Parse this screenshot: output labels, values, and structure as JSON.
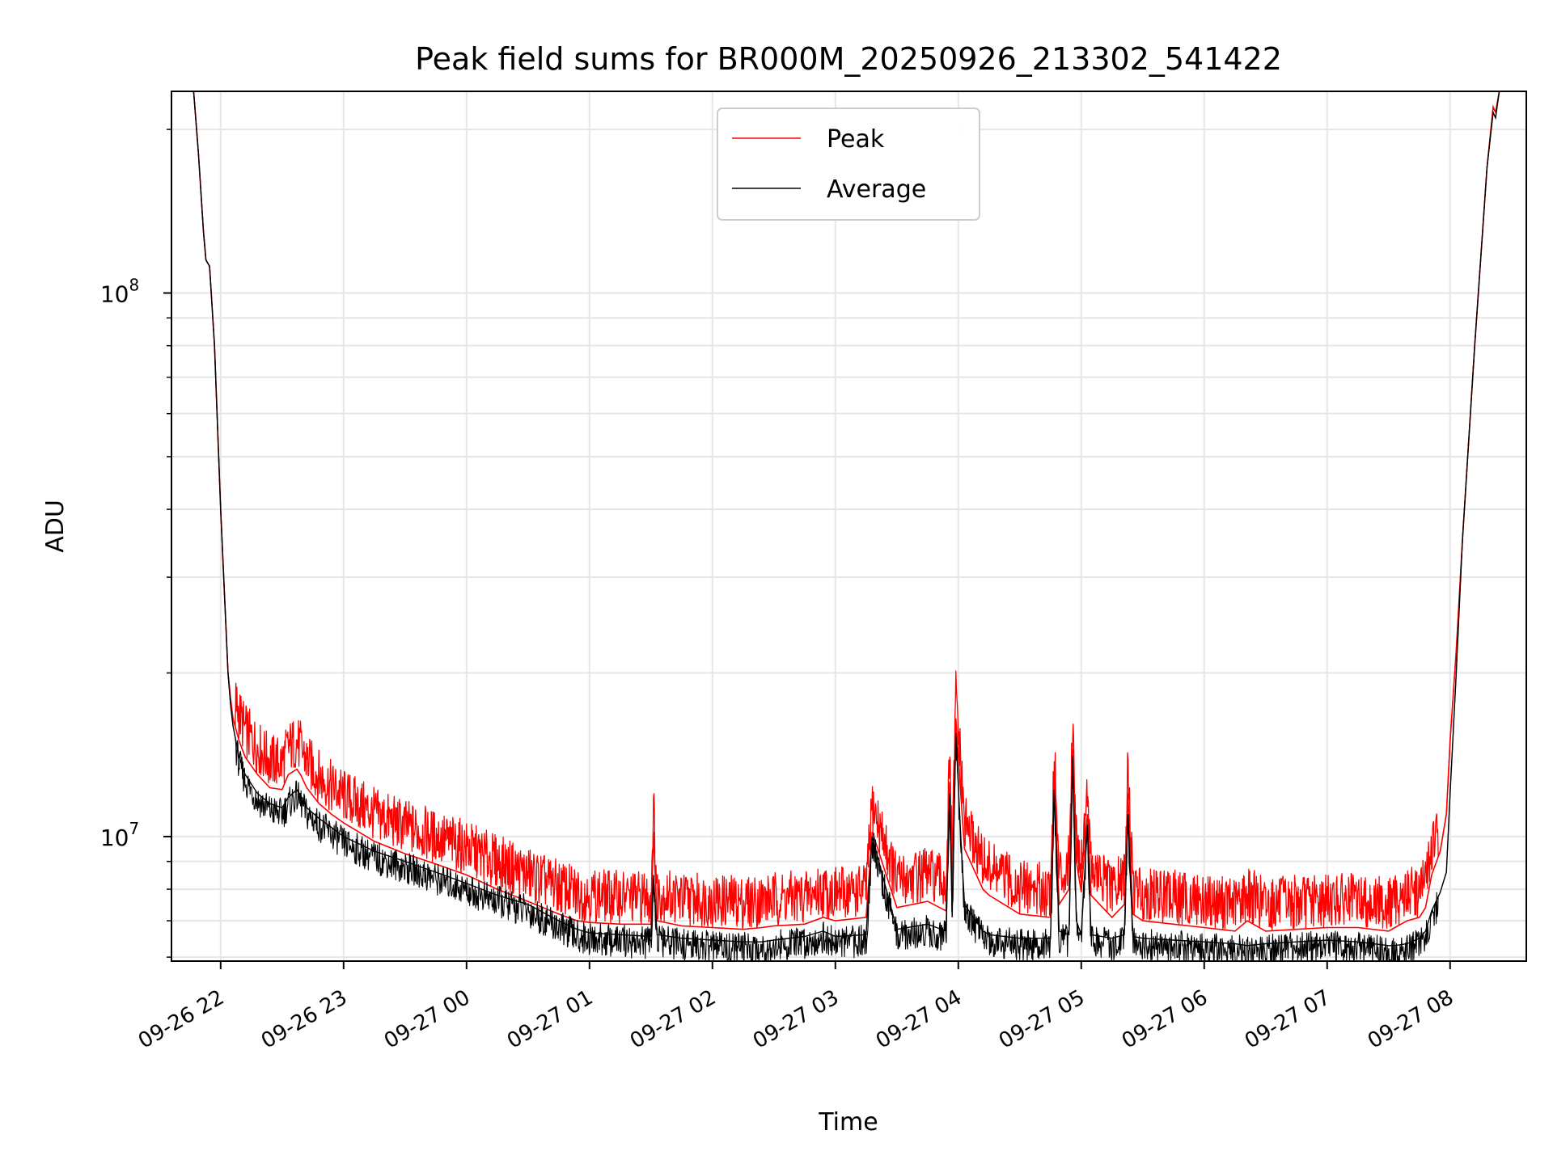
{
  "chart_data": {
    "type": "line",
    "title": "Peak field sums for BR000M_20250926_213302_541422",
    "xlabel": "Time",
    "ylabel": "ADU",
    "yscale": "log",
    "xlim": [
      -0.4,
      10.62
    ],
    "ylim": [
      5900000,
      235000000
    ],
    "grid": true,
    "legend_position": "top-center",
    "x_ticks": [
      {
        "value": 0,
        "label": "09-26 22"
      },
      {
        "value": 1,
        "label": "09-26 23"
      },
      {
        "value": 2,
        "label": "09-27 00"
      },
      {
        "value": 3,
        "label": "09-27 01"
      },
      {
        "value": 4,
        "label": "09-27 02"
      },
      {
        "value": 5,
        "label": "09-27 03"
      },
      {
        "value": 6,
        "label": "09-27 04"
      },
      {
        "value": 7,
        "label": "09-27 05"
      },
      {
        "value": 8,
        "label": "09-27 06"
      },
      {
        "value": 9,
        "label": "09-27 07"
      },
      {
        "value": 10,
        "label": "09-27 08"
      }
    ],
    "y_ticks": [
      {
        "value": 10000000,
        "base": "10",
        "exp": "7"
      },
      {
        "value": 100000000,
        "base": "10",
        "exp": "8"
      }
    ],
    "series": [
      {
        "name": "Peak",
        "color": "#ff0000",
        "x": [
          -0.27,
          -0.22,
          -0.18,
          -0.14,
          -0.12,
          -0.09,
          -0.05,
          0,
          0.06,
          0.08,
          0.1,
          0.15,
          0.2,
          0.3,
          0.4,
          0.5,
          0.55,
          0.62,
          0.65,
          0.7,
          0.8,
          0.9,
          1,
          1.25,
          1.5,
          1.75,
          2,
          2.25,
          2.5,
          2.75,
          2.9,
          3,
          3.25,
          3.5,
          3.52,
          3.55,
          3.75,
          4,
          4.25,
          4.4,
          4.5,
          4.75,
          4.9,
          5,
          5.25,
          5.3,
          5.5,
          5.75,
          5.9,
          5.93,
          5.95,
          5.98,
          6.02,
          6.05,
          6.2,
          6.25,
          6.5,
          6.75,
          6.78,
          6.82,
          6.9,
          6.93,
          6.96,
          7,
          7.05,
          7.08,
          7.25,
          7.35,
          7.38,
          7.42,
          7.5,
          7.75,
          8,
          8.25,
          8.35,
          8.5,
          8.75,
          9,
          9.25,
          9.5,
          9.55,
          9.65,
          9.75,
          9.8,
          9.85,
          9.92,
          9.97,
          10,
          10.05,
          10.1,
          10.2,
          10.3,
          10.35,
          10.37,
          10.4,
          10.45,
          10.5
        ],
        "y": [
          235000000,
          235000000,
          180000000,
          130000000,
          115000000,
          112000000,
          80000000,
          40000000,
          20000000,
          18000000,
          16500000,
          15000000,
          14000000,
          13000000,
          12300000,
          12200000,
          13000000,
          13300000,
          13000000,
          12300000,
          11500000,
          11000000,
          10600000,
          9800000,
          9300000,
          8900000,
          8500000,
          8000000,
          7600000,
          7200000,
          7000000,
          6950000,
          6900000,
          6900000,
          10200000,
          7000000,
          6850000,
          6800000,
          6750000,
          6800000,
          6850000,
          6900000,
          7100000,
          7000000,
          7100000,
          10200000,
          7400000,
          7600000,
          7300000,
          12600000,
          8000000,
          16500000,
          12000000,
          9500000,
          8000000,
          7800000,
          7200000,
          7100000,
          12700000,
          7500000,
          8000000,
          14500000,
          9000000,
          7900000,
          11000000,
          7800000,
          7100000,
          7500000,
          12000000,
          7200000,
          7000000,
          6900000,
          6800000,
          6700000,
          7000000,
          6700000,
          6750000,
          6800000,
          6800000,
          6700000,
          6800000,
          7000000,
          7100000,
          7400000,
          8500000,
          9400000,
          11000000,
          15000000,
          22000000,
          35000000,
          80000000,
          170000000,
          220000000,
          215000000,
          235000000,
          235000000,
          235000000
        ]
      },
      {
        "name": "Average",
        "color": "#000000",
        "x": [
          -0.27,
          -0.22,
          -0.18,
          -0.14,
          -0.12,
          -0.09,
          -0.05,
          0,
          0.06,
          0.08,
          0.1,
          0.15,
          0.2,
          0.3,
          0.4,
          0.5,
          0.55,
          0.62,
          0.65,
          0.7,
          0.8,
          0.9,
          1,
          1.25,
          1.5,
          1.75,
          2,
          2.25,
          2.5,
          2.75,
          2.9,
          3,
          3.25,
          3.5,
          3.52,
          3.55,
          3.75,
          4,
          4.25,
          4.4,
          4.5,
          4.75,
          4.9,
          5,
          5.25,
          5.3,
          5.5,
          5.75,
          5.9,
          5.93,
          5.95,
          5.98,
          6.02,
          6.05,
          6.2,
          6.25,
          6.5,
          6.75,
          6.78,
          6.82,
          6.9,
          6.93,
          6.96,
          7,
          7.05,
          7.08,
          7.25,
          7.35,
          7.38,
          7.42,
          7.5,
          7.75,
          8,
          8.25,
          8.35,
          8.5,
          8.75,
          9,
          9.25,
          9.5,
          9.55,
          9.65,
          9.75,
          9.8,
          9.85,
          9.92,
          9.97,
          10,
          10.05,
          10.1,
          10.2,
          10.3,
          10.35,
          10.37,
          10.4,
          10.45,
          10.5
        ],
        "y": [
          235000000,
          235000000,
          180000000,
          130000000,
          115000000,
          112000000,
          80000000,
          40000000,
          20000000,
          17500000,
          16000000,
          14000000,
          13000000,
          12000000,
          11500000,
          11300000,
          11800000,
          12200000,
          11900000,
          11300000,
          10800000,
          10400000,
          10000000,
          9400000,
          9000000,
          8600000,
          8200000,
          7800000,
          7500000,
          7000000,
          6750000,
          6650000,
          6600000,
          6550000,
          8500000,
          6600000,
          6500000,
          6450000,
          6400000,
          6400000,
          6450000,
          6550000,
          6700000,
          6550000,
          6600000,
          10000000,
          6750000,
          6900000,
          6700000,
          12000000,
          7100000,
          15500000,
          10000000,
          7500000,
          6700000,
          6600000,
          6500000,
          6500000,
          12200000,
          6700000,
          6600000,
          14000000,
          7000000,
          6600000,
          10500000,
          6600000,
          6500000,
          6600000,
          11000000,
          6550000,
          6500000,
          6450000,
          6400000,
          6350000,
          6300000,
          6350000,
          6400000,
          6450000,
          6400000,
          6300000,
          6300000,
          6350000,
          6500000,
          6700000,
          7300000,
          7900000,
          8600000,
          12000000,
          20000000,
          35000000,
          80000000,
          170000000,
          215000000,
          210000000,
          235000000,
          235000000,
          235000000
        ]
      }
    ]
  }
}
